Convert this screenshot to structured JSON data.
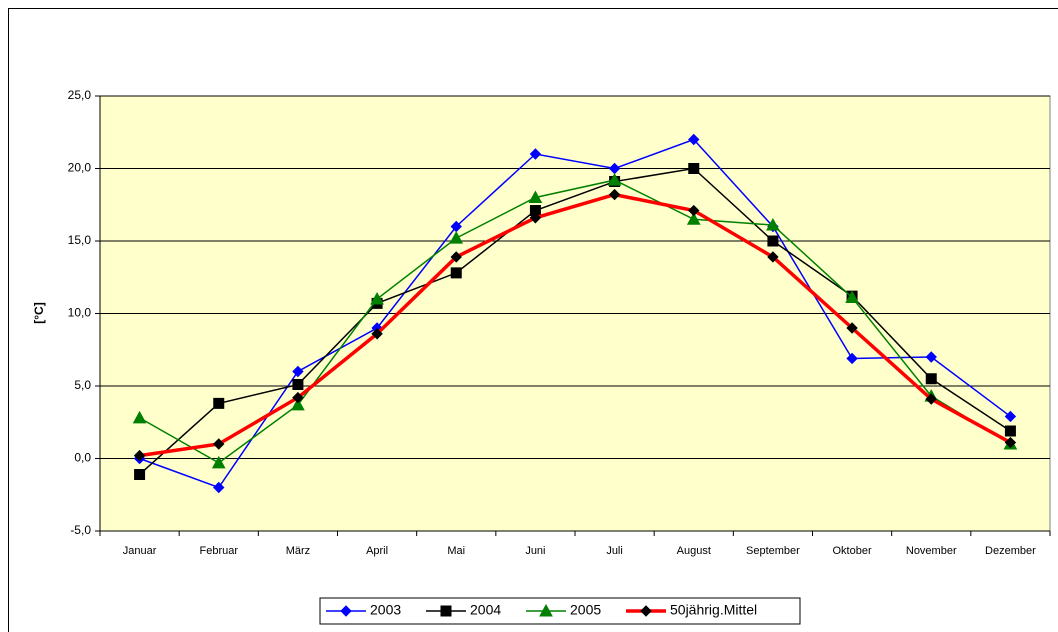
{
  "chart_data": {
    "type": "line",
    "ylabel": "[°C]",
    "categories": [
      "Januar",
      "Februar",
      "März",
      "April",
      "Mai",
      "Juni",
      "Juli",
      "August",
      "September",
      "Oktober",
      "November",
      "Dezember"
    ],
    "series": [
      {
        "name": "2003",
        "color": "#0000ff",
        "marker": "diamond",
        "values": [
          0.0,
          -2.0,
          6.0,
          9.0,
          16.0,
          21.0,
          20.0,
          22.0,
          16.0,
          6.9,
          7.0,
          2.9
        ]
      },
      {
        "name": "2004",
        "color": "#000000",
        "marker": "square",
        "values": [
          -1.1,
          3.8,
          5.1,
          10.7,
          12.8,
          17.1,
          19.1,
          20.0,
          15.0,
          11.2,
          5.5,
          1.9
        ]
      },
      {
        "name": "2005",
        "color": "#008000",
        "marker": "triangle",
        "values": [
          2.8,
          -0.3,
          3.7,
          11.0,
          15.2,
          18.0,
          19.2,
          16.5,
          16.1,
          11.1,
          4.3,
          1.0
        ]
      },
      {
        "name": "50jährig.Mittel",
        "color": "#ff0000",
        "marker": "diamond",
        "marker_color": "#000000",
        "line_width": 3.5,
        "values": [
          0.2,
          1.0,
          4.2,
          8.6,
          13.9,
          16.6,
          18.2,
          17.1,
          13.9,
          9.0,
          4.1,
          1.1
        ]
      }
    ],
    "ylim": [
      -5,
      25
    ],
    "yticks": [
      {
        "value": -5,
        "label": "-5,0"
      },
      {
        "value": 0,
        "label": "0,0"
      },
      {
        "value": 5,
        "label": "5,0"
      },
      {
        "value": 10,
        "label": "10,0"
      },
      {
        "value": 15,
        "label": "15,0"
      },
      {
        "value": 20,
        "label": "20,0"
      },
      {
        "value": 25,
        "label": "25,0"
      }
    ],
    "grid": true,
    "plot_background": "#ffffcc",
    "legend": "bottom"
  }
}
